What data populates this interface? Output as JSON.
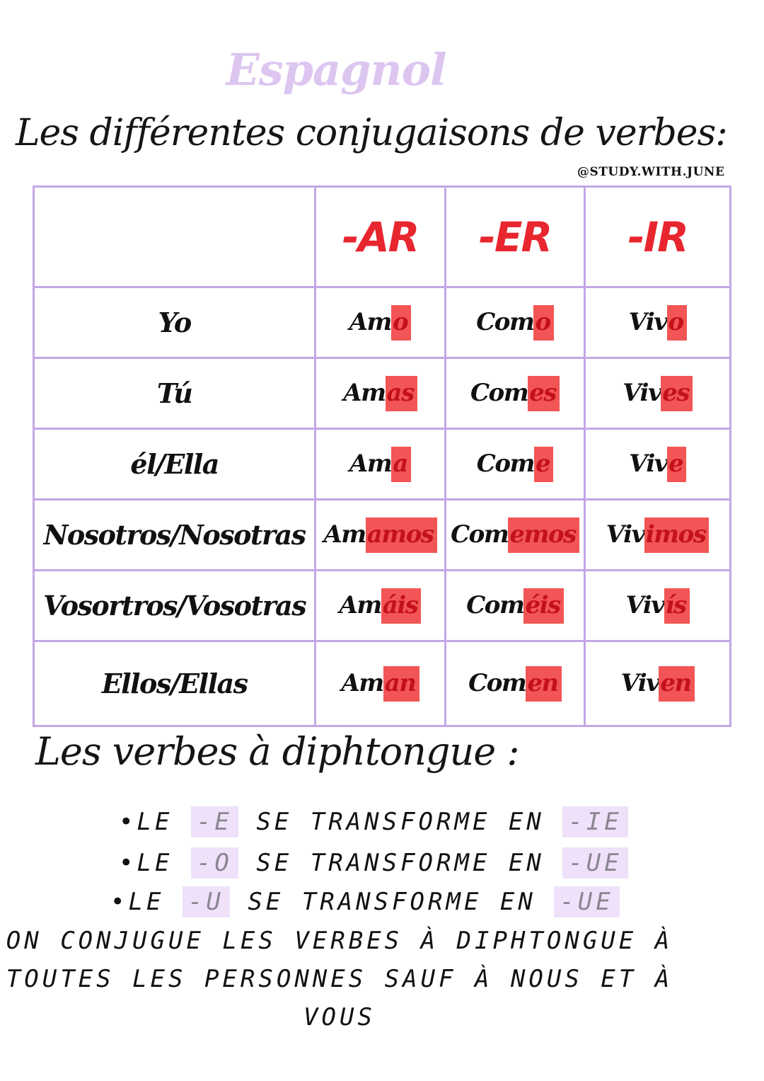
{
  "subject": "Espagnol",
  "heading": "Les différentes conjugaisons de verbes:",
  "handle": "@STUDY.WITH.JUNE",
  "table": {
    "corner": "",
    "headers": [
      "-AR",
      "-ER",
      "-IR"
    ],
    "rows": [
      {
        "pronoun": "Yo",
        "cells": [
          {
            "stem": "Am",
            "ending": "o"
          },
          {
            "stem": "Com",
            "ending": "o"
          },
          {
            "stem": "Viv",
            "ending": "o"
          }
        ]
      },
      {
        "pronoun": "Tú",
        "cells": [
          {
            "stem": "Am",
            "ending": "as"
          },
          {
            "stem": "Com",
            "ending": "es"
          },
          {
            "stem": "Viv",
            "ending": "es"
          }
        ]
      },
      {
        "pronoun": "él/Ella",
        "cells": [
          {
            "stem": "Am",
            "ending": "a"
          },
          {
            "stem": "Com",
            "ending": "e"
          },
          {
            "stem": "Viv",
            "ending": "e"
          }
        ]
      },
      {
        "pronoun": "Nosotros/Nosotras",
        "cells": [
          {
            "stem": "Am",
            "ending": "amos"
          },
          {
            "stem": "Com",
            "ending": "emos"
          },
          {
            "stem": "Viv",
            "ending": "imos"
          }
        ]
      },
      {
        "pronoun": "Vosortros/Vosotras",
        "cells": [
          {
            "stem": "Am",
            "ending": "áis"
          },
          {
            "stem": "Com",
            "ending": "éis"
          },
          {
            "stem": "Viv",
            "ending": "ís"
          }
        ]
      },
      {
        "pronoun": "Ellos/Ellas",
        "cells": [
          {
            "stem": "Am",
            "ending": "an"
          },
          {
            "stem": "Com",
            "ending": "en"
          },
          {
            "stem": "Viv",
            "ending": "en"
          }
        ]
      }
    ]
  },
  "diphthong": {
    "title": "Les verbes à diphtongue :",
    "rules": [
      {
        "prefix": "•LE ",
        "from": "-E",
        "middle": " SE TRANSFORME EN ",
        "to": "-IE"
      },
      {
        "prefix": "•LE ",
        "from": "-O",
        "middle": " SE TRANSFORME EN ",
        "to": "-UE"
      },
      {
        "prefix": "•LE ",
        "from": "-U",
        "middle": " SE TRANSFORME EN ",
        "to": "-UE"
      }
    ],
    "note": [
      "ON CONJUGUE LES VERBES À DIPHTONGUE À",
      "TOUTES LES PERSONNES SAUF À NOUS ET À",
      "VOUS"
    ]
  },
  "colors": {
    "subject": "#dcc6f0",
    "table_border": "#c3a7e6",
    "header_red": "#e8262f",
    "ending_highlight": "#f25555",
    "rule_highlight": "#eee1f9"
  }
}
